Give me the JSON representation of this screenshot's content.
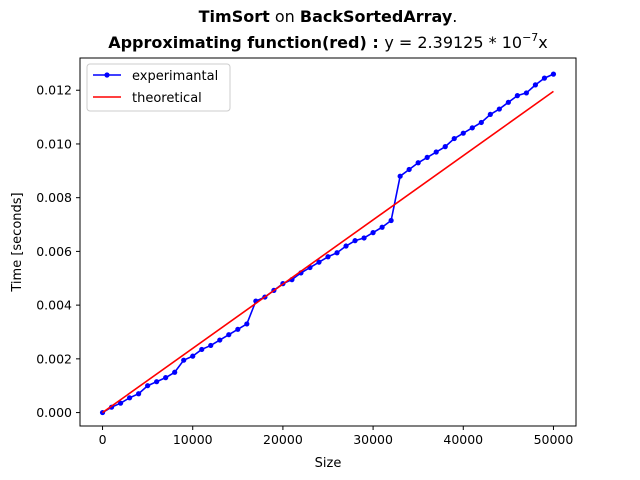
{
  "chart_data": {
    "type": "line",
    "title_line1": {
      "part1": "TimSort",
      "part2": " on ",
      "part3": "BackSortedArray",
      "part4": "."
    },
    "title_line2": {
      "bold": "Approximating function(red)",
      "colon": " : ",
      "formula_pre": "y = 2.39125 * 10",
      "formula_exp": "−7",
      "formula_post": "x"
    },
    "xlabel": "Size",
    "ylabel": "Time [seconds]",
    "xlim": [
      -2500,
      52500
    ],
    "ylim": [
      -0.0005,
      0.0132
    ],
    "xticks": [
      0,
      10000,
      20000,
      30000,
      40000,
      50000
    ],
    "xtick_labels": [
      "0",
      "10000",
      "20000",
      "30000",
      "40000",
      "50000"
    ],
    "yticks": [
      0.0,
      0.002,
      0.004,
      0.006,
      0.008,
      0.01,
      0.012
    ],
    "ytick_labels": [
      "0.000",
      "0.002",
      "0.004",
      "0.006",
      "0.008",
      "0.010",
      "0.012"
    ],
    "legend_position": "top-left",
    "series": [
      {
        "name": "experimantal",
        "color": "#0000ff",
        "marker": "circle",
        "x": [
          0,
          1000,
          2000,
          3000,
          4000,
          5000,
          6000,
          7000,
          8000,
          9000,
          10000,
          11000,
          12000,
          13000,
          14000,
          15000,
          16000,
          17000,
          18000,
          19000,
          20000,
          21000,
          22000,
          23000,
          24000,
          25000,
          26000,
          27000,
          28000,
          29000,
          30000,
          31000,
          32000,
          33000,
          34000,
          35000,
          36000,
          37000,
          38000,
          39000,
          40000,
          41000,
          42000,
          43000,
          44000,
          45000,
          46000,
          47000,
          48000,
          49000,
          50000
        ],
        "y": [
          0.0,
          0.0002,
          0.00035,
          0.00055,
          0.0007,
          0.001,
          0.00115,
          0.0013,
          0.0015,
          0.00195,
          0.0021,
          0.00235,
          0.0025,
          0.0027,
          0.0029,
          0.0031,
          0.0033,
          0.00415,
          0.0043,
          0.00455,
          0.0048,
          0.00495,
          0.0052,
          0.0054,
          0.0056,
          0.0058,
          0.00595,
          0.0062,
          0.0064,
          0.0065,
          0.0067,
          0.0069,
          0.00715,
          0.0088,
          0.00905,
          0.0093,
          0.0095,
          0.0097,
          0.0099,
          0.0102,
          0.0104,
          0.0106,
          0.0108,
          0.0111,
          0.0113,
          0.01155,
          0.0118,
          0.0119,
          0.0122,
          0.01245,
          0.0126
        ]
      },
      {
        "name": "theoretical",
        "color": "#ff0000",
        "marker": "none",
        "x": [
          0,
          50000
        ],
        "y": [
          0.0,
          0.01195625
        ]
      }
    ]
  }
}
